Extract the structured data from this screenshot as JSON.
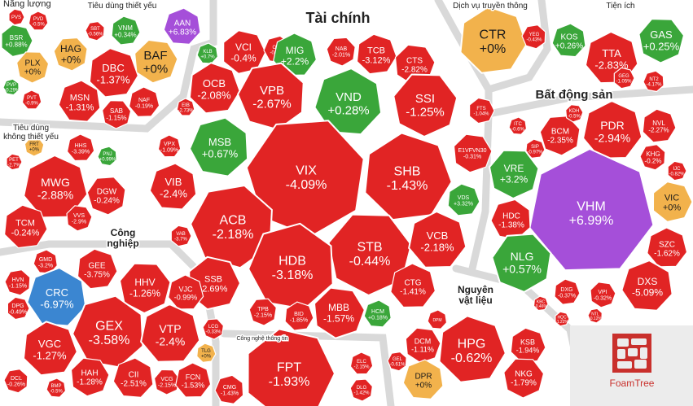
{
  "colors": {
    "down": "#e12424",
    "up": "#3aa63a",
    "flat": "#f2b24c",
    "ceiling": "#a54fd9",
    "floor": "#3b86d1",
    "border": "#ffffff",
    "gap": "#d9d9d9"
  },
  "brand": {
    "name": "FoamTree",
    "logo_icon": "foamtree-logo-icon"
  },
  "chart_data": {
    "type": "treemap",
    "sectors": [
      {
        "name": "Năng lượng"
      },
      {
        "name": "Tiêu dùng thiết yếu"
      },
      {
        "name": "Tài chính"
      },
      {
        "name": "Dịch vụ truyền thông"
      },
      {
        "name": "Tiện ích"
      },
      {
        "name": "Bất động sản"
      },
      {
        "name": "Tiêu dùng không thiết yếu"
      },
      {
        "name": "Công nghiệp"
      },
      {
        "name": "Công nghệ thông tin"
      },
      {
        "name": "Nguyên vật liệu"
      }
    ],
    "stocks": [
      {
        "ticker": "BSR",
        "change": "+0.88%",
        "status": "up"
      },
      {
        "ticker": "PLX",
        "change": "+0%",
        "status": "flat"
      },
      {
        "ticker": "PVD",
        "change": "-0.5%",
        "status": "down"
      },
      {
        "ticker": "PVS",
        "change": "",
        "status": "down"
      },
      {
        "ticker": "PVP",
        "change": "+0.29%",
        "status": "up"
      },
      {
        "ticker": "PVT",
        "change": "-0.9%",
        "status": "down"
      },
      {
        "ticker": "HAG",
        "change": "+0%",
        "status": "flat"
      },
      {
        "ticker": "DBC",
        "change": "-1.37%",
        "status": "down"
      },
      {
        "ticker": "BAF",
        "change": "+0%",
        "status": "flat"
      },
      {
        "ticker": "AAN",
        "change": "+6.83%",
        "status": "ceiling"
      },
      {
        "ticker": "VNM",
        "change": "+0.34%",
        "status": "up"
      },
      {
        "ticker": "SBT",
        "change": "-0.56%",
        "status": "down"
      },
      {
        "ticker": "MSN",
        "change": "-1.31%",
        "status": "down"
      },
      {
        "ticker": "SAB",
        "change": "-1.15%",
        "status": "down"
      },
      {
        "ticker": "NAF",
        "change": "-0.19%",
        "status": "down"
      },
      {
        "ticker": "VCI",
        "change": "-0.4%",
        "status": "down"
      },
      {
        "ticker": "ORS",
        "change": "-0.36%",
        "status": "down"
      },
      {
        "ticker": "MIG",
        "change": "+2.2%",
        "status": "up"
      },
      {
        "ticker": "NAB",
        "change": "-2.01%",
        "status": "down"
      },
      {
        "ticker": "TCB",
        "change": "-3.12%",
        "status": "down"
      },
      {
        "ticker": "CTS",
        "change": "-2.82%",
        "status": "down"
      },
      {
        "ticker": "KLB",
        "change": "+0.7%",
        "status": "up"
      },
      {
        "ticker": "OCB",
        "change": "-2.08%",
        "status": "down"
      },
      {
        "ticker": "VPB",
        "change": "-2.67%",
        "status": "down"
      },
      {
        "ticker": "VND",
        "change": "+0.28%",
        "status": "up"
      },
      {
        "ticker": "SSI",
        "change": "-1.25%",
        "status": "down"
      },
      {
        "ticker": "EIB",
        "change": "-2.73%",
        "status": "down"
      },
      {
        "ticker": "FTS",
        "change": "-1.04%",
        "status": "down"
      },
      {
        "ticker": "MSB",
        "change": "+0.67%",
        "status": "up"
      },
      {
        "ticker": "VPX",
        "change": "-1.09%",
        "status": "down"
      },
      {
        "ticker": "VIX",
        "change": "-4.09%",
        "status": "down"
      },
      {
        "ticker": "SHB",
        "change": "-1.43%",
        "status": "down"
      },
      {
        "ticker": "E1VFVN30",
        "change": "-0.31%",
        "status": "down"
      },
      {
        "ticker": "VIB",
        "change": "-2.4%",
        "status": "down"
      },
      {
        "ticker": "VDS",
        "change": "+3.32%",
        "status": "up"
      },
      {
        "ticker": "ACB",
        "change": "-2.18%",
        "status": "down"
      },
      {
        "ticker": "VAB",
        "change": "-3.7%",
        "status": "down"
      },
      {
        "ticker": "STB",
        "change": "-0.44%",
        "status": "down"
      },
      {
        "ticker": "VCB",
        "change": "-2.18%",
        "status": "down"
      },
      {
        "ticker": "SSB",
        "change": "-2.69%",
        "status": "down"
      },
      {
        "ticker": "HDB",
        "change": "-3.18%",
        "status": "down"
      },
      {
        "ticker": "CTG",
        "change": "-1.41%",
        "status": "down"
      },
      {
        "ticker": "TPB",
        "change": "-2.15%",
        "status": "down"
      },
      {
        "ticker": "BID",
        "change": "-1.85%",
        "status": "down"
      },
      {
        "ticker": "MBB",
        "change": "-1.57%",
        "status": "down"
      },
      {
        "ticker": "HCM",
        "change": "+0.18%",
        "status": "up"
      },
      {
        "ticker": "CTR",
        "change": "+0%",
        "status": "flat"
      },
      {
        "ticker": "YEG",
        "change": "-0.43%",
        "status": "down"
      },
      {
        "ticker": "KOS",
        "change": "+0.26%",
        "status": "up"
      },
      {
        "ticker": "GAS",
        "change": "+0.25%",
        "status": "up"
      },
      {
        "ticker": "TTA",
        "change": "-2.83%",
        "status": "down"
      },
      {
        "ticker": "GEG",
        "change": "-1.05%",
        "status": "down"
      },
      {
        "ticker": "NT2",
        "change": "-4.17%",
        "status": "down"
      },
      {
        "ticker": "PDR",
        "change": "-2.94%",
        "status": "down"
      },
      {
        "ticker": "BCM",
        "change": "-2.35%",
        "status": "down"
      },
      {
        "ticker": "NVL",
        "change": "-2.27%",
        "status": "down"
      },
      {
        "ticker": "KDH",
        "change": "-0.5%",
        "status": "down"
      },
      {
        "ticker": "ITC",
        "change": "-0.6%",
        "status": "down"
      },
      {
        "ticker": "SIP",
        "change": "-0.97%",
        "status": "down"
      },
      {
        "ticker": "KHG",
        "change": "-0.2%",
        "status": "down"
      },
      {
        "ticker": "IJC",
        "change": "-0.82%",
        "status": "down"
      },
      {
        "ticker": "VRE",
        "change": "+3.2%",
        "status": "up"
      },
      {
        "ticker": "VHM",
        "change": "+6.99%",
        "status": "ceiling"
      },
      {
        "ticker": "VIC",
        "change": "+0%",
        "status": "flat"
      },
      {
        "ticker": "HDC",
        "change": "-1.38%",
        "status": "down"
      },
      {
        "ticker": "SZC",
        "change": "-1.62%",
        "status": "down"
      },
      {
        "ticker": "NLG",
        "change": "+0.57%",
        "status": "up"
      },
      {
        "ticker": "DXG",
        "change": "-0.37%",
        "status": "down"
      },
      {
        "ticker": "VPI",
        "change": "-0.32%",
        "status": "down"
      },
      {
        "ticker": "DXS",
        "change": "-5.09%",
        "status": "down"
      },
      {
        "ticker": "KBC",
        "change": "-0.46%",
        "status": "down"
      },
      {
        "ticker": "NTL",
        "change": "-0.12%",
        "status": "down"
      },
      {
        "ticker": "HQC",
        "change": "-1.22%",
        "status": "down"
      },
      {
        "ticker": "FRT",
        "change": "+0%",
        "status": "flat"
      },
      {
        "ticker": "HHS",
        "change": "-3.39%",
        "status": "down"
      },
      {
        "ticker": "PET",
        "change": "-2.7%",
        "status": "down"
      },
      {
        "ticker": "PNJ",
        "change": "+0.99%",
        "status": "up"
      },
      {
        "ticker": "MWG",
        "change": "-2.88%",
        "status": "down"
      },
      {
        "ticker": "DGW",
        "change": "-0.24%",
        "status": "down"
      },
      {
        "ticker": "TCM",
        "change": "-0.24%",
        "status": "down"
      },
      {
        "ticker": "VVS",
        "change": "-2.9%",
        "status": "down"
      },
      {
        "ticker": "GMD",
        "change": "-3.2%",
        "status": "down"
      },
      {
        "ticker": "GEE",
        "change": "-3.75%",
        "status": "down"
      },
      {
        "ticker": "HVN",
        "change": "-1.15%",
        "status": "down"
      },
      {
        "ticker": "CRC",
        "change": "-6.97%",
        "status": "floor"
      },
      {
        "ticker": "HHV",
        "change": "-1.26%",
        "status": "down"
      },
      {
        "ticker": "VJC",
        "change": "-0.99%",
        "status": "down"
      },
      {
        "ticker": "DPG",
        "change": "-0.49%",
        "status": "down"
      },
      {
        "ticker": "GEX",
        "change": "-3.58%",
        "status": "down"
      },
      {
        "ticker": "VTP",
        "change": "-2.4%",
        "status": "down"
      },
      {
        "ticker": "LCG",
        "change": "-0.33%",
        "status": "down"
      },
      {
        "ticker": "VGC",
        "change": "-1.27%",
        "status": "down"
      },
      {
        "ticker": "HAH",
        "change": "-1.28%",
        "status": "down"
      },
      {
        "ticker": "CII",
        "change": "-2.51%",
        "status": "down"
      },
      {
        "ticker": "TLG",
        "change": "+0%",
        "status": "flat"
      },
      {
        "ticker": "DCL",
        "change": "-0.26%",
        "status": "down"
      },
      {
        "ticker": "BMP",
        "change": "-0.5%",
        "status": "down"
      },
      {
        "ticker": "VCG",
        "change": "-2.15%",
        "status": "down"
      },
      {
        "ticker": "FCN",
        "change": "-1.53%",
        "status": "down"
      },
      {
        "ticker": "FPT",
        "change": "-1.93%",
        "status": "down"
      },
      {
        "ticker": "CMG",
        "change": "-1.43%",
        "status": "down"
      },
      {
        "ticker": "ELC",
        "change": "-2.15%",
        "status": "down"
      },
      {
        "ticker": "DLG",
        "change": "-1.42%",
        "status": "down"
      },
      {
        "ticker": "HPG",
        "change": "-0.62%",
        "status": "down"
      },
      {
        "ticker": "DCM",
        "change": "-1.11%",
        "status": "down"
      },
      {
        "ticker": "DPM",
        "change": "",
        "status": "down"
      },
      {
        "ticker": "KSB",
        "change": "-1.94%",
        "status": "down"
      },
      {
        "ticker": "GEL",
        "change": "-0.61%",
        "status": "down"
      },
      {
        "ticker": "DPR",
        "change": "+0%",
        "status": "flat"
      },
      {
        "ticker": "NKG",
        "change": "-1.79%",
        "status": "down"
      }
    ]
  }
}
